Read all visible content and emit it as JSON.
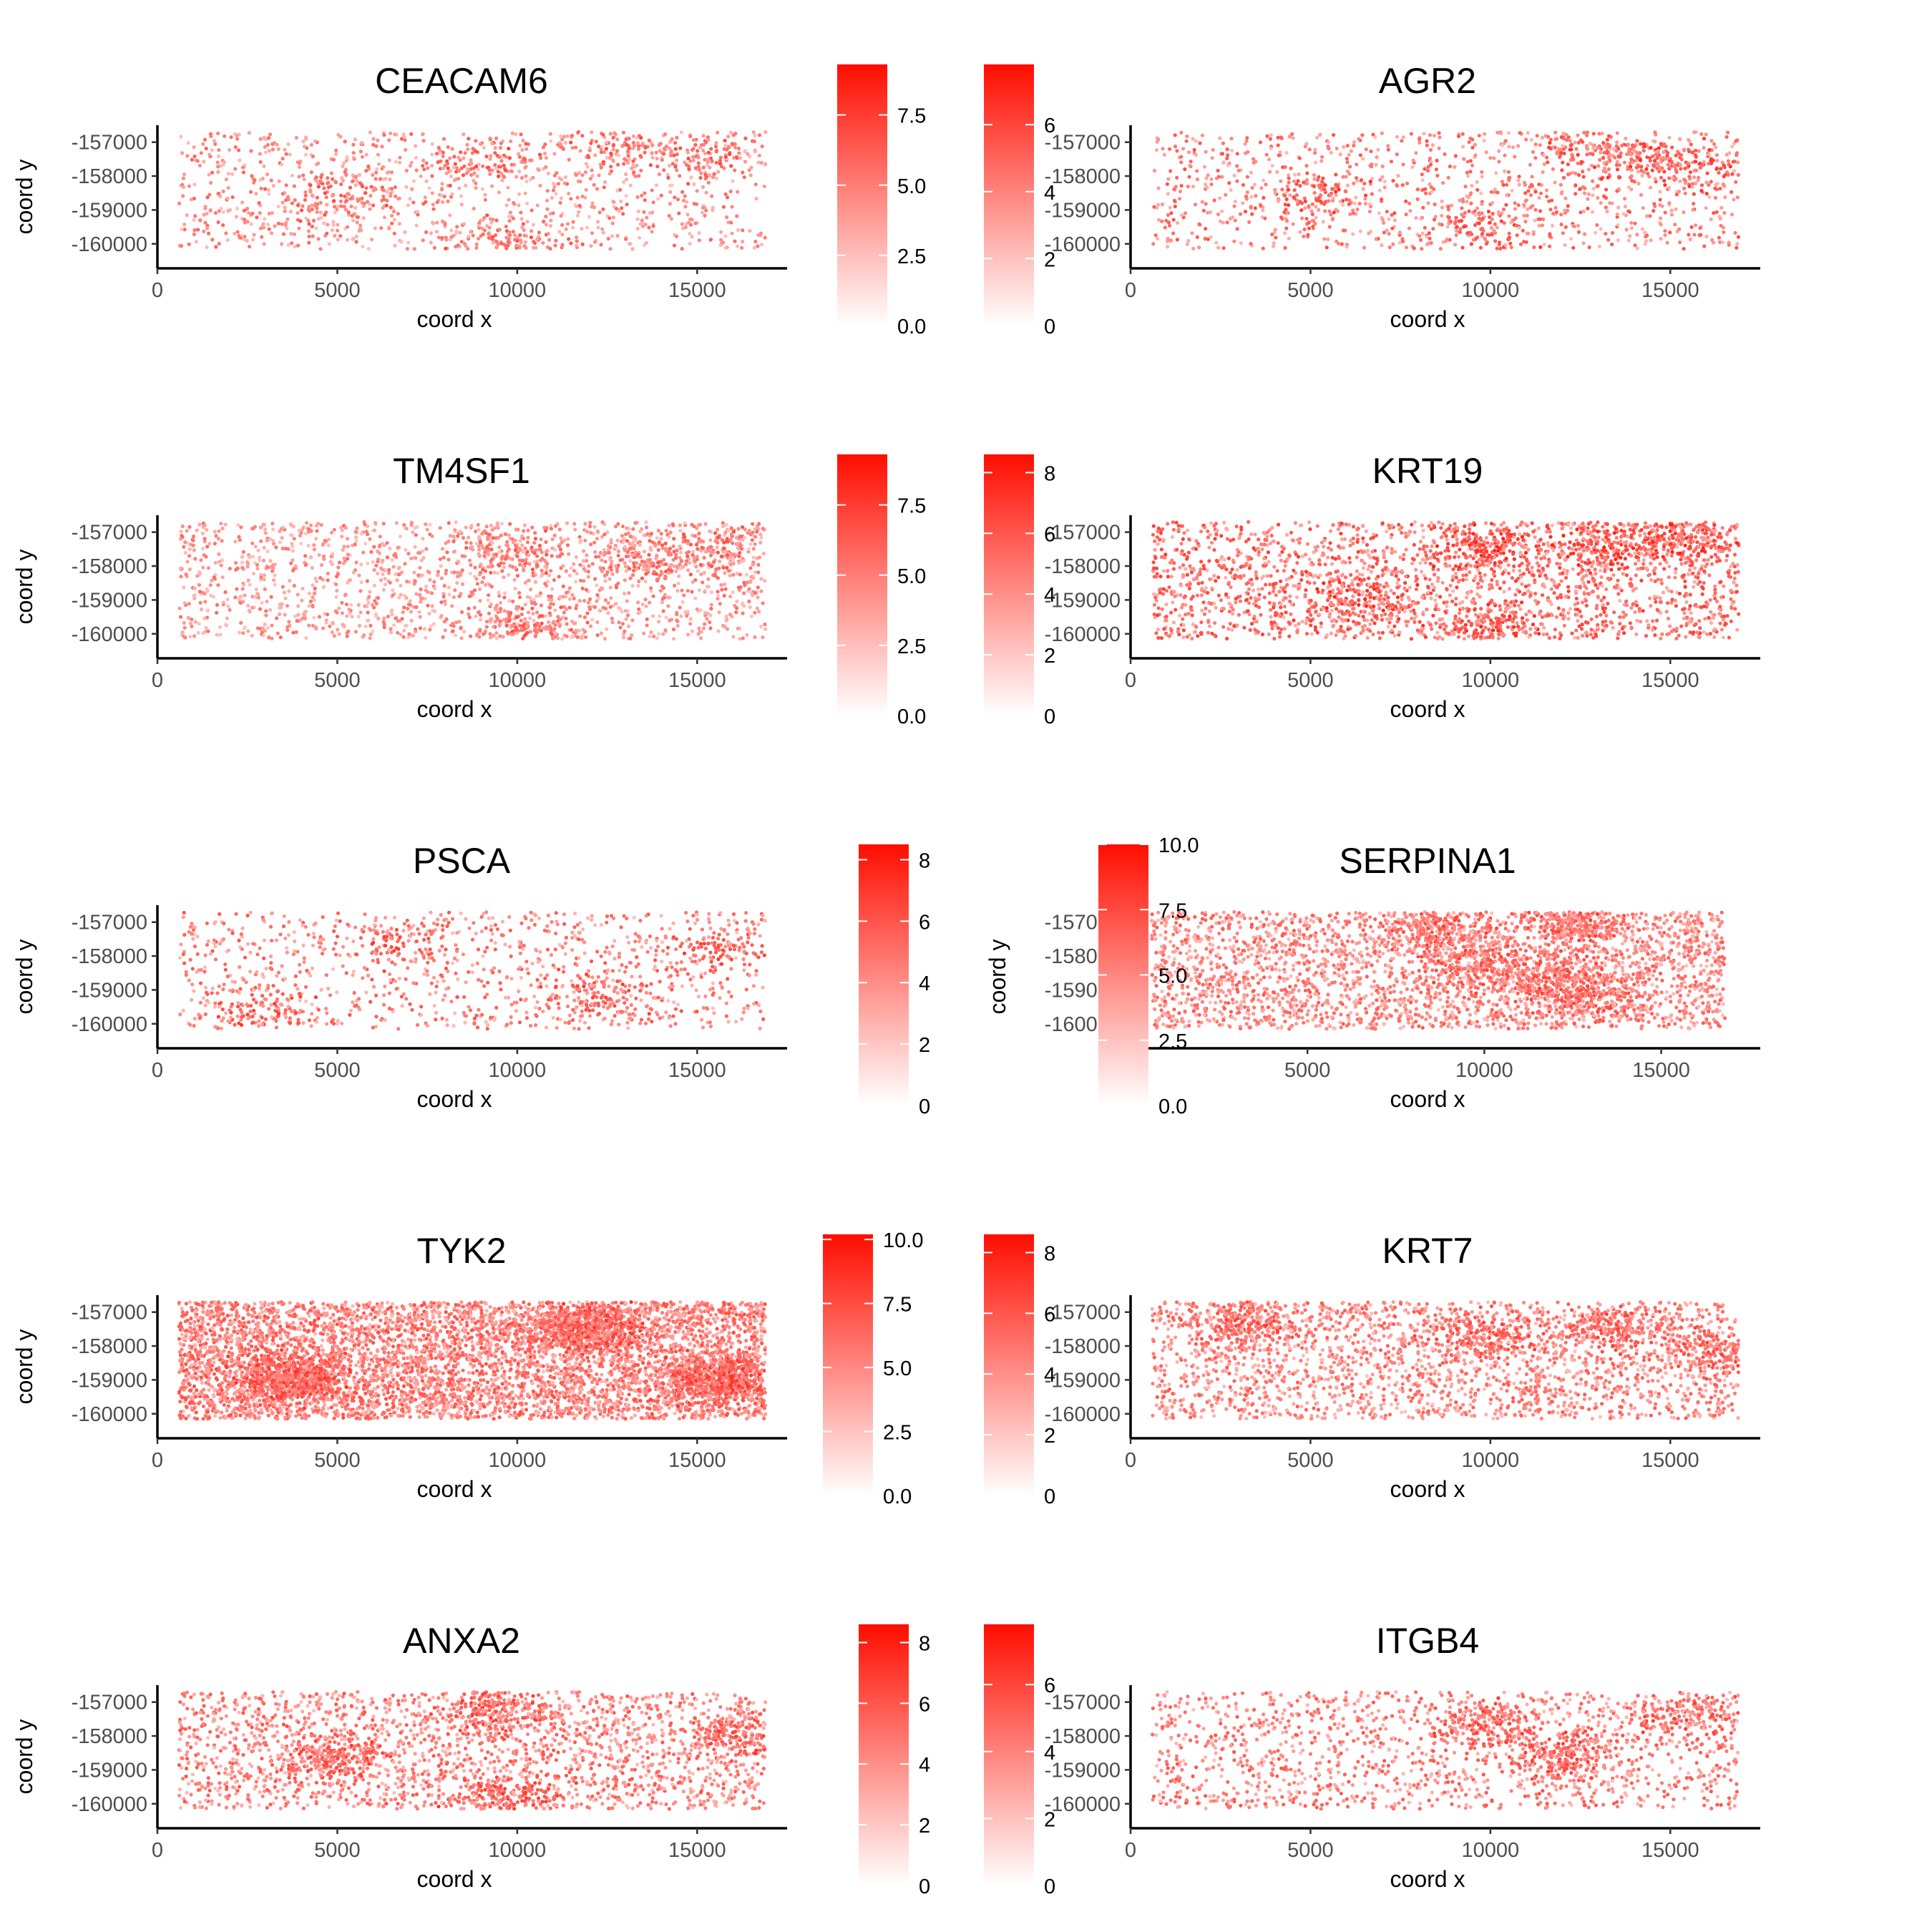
{
  "chart_data": [
    {
      "type": "scatter",
      "title": "CEACAM6",
      "xlabel": "coord x",
      "ylabel": "coord y",
      "xlim": [
        0,
        17500
      ],
      "ylim": [
        -160300,
        -156500
      ],
      "x_ticks": [
        0,
        5000,
        10000,
        15000
      ],
      "x_tick_labels": [
        "0",
        "5000",
        "10000",
        "15000"
      ],
      "y_ticks": [
        -160000,
        -159000,
        -158000,
        -157000
      ],
      "y_tick_labels": [
        "-160000",
        "-159000",
        "-158000",
        "-157000"
      ],
      "colorbar": {
        "range": [
          0,
          9.3
        ],
        "ticks": [
          0,
          2.5,
          5,
          7.5
        ],
        "tick_labels": [
          "0.0",
          "2.5",
          "5.0",
          "7.5"
        ],
        "low_color": "#ffffff",
        "high_color": "#ff0d00"
      },
      "density": 1.0,
      "intensity": 0.55,
      "hotspots": [
        [
          15200,
          -157400
        ],
        [
          12600,
          -157200
        ],
        [
          10000,
          -160000
        ],
        [
          9200,
          -157600
        ],
        [
          5000,
          -158600
        ]
      ],
      "grid": false,
      "legend": "right"
    },
    {
      "type": "scatter",
      "title": "AGR2",
      "xlabel": "coord x",
      "ylabel": "coord y",
      "xlim": [
        0,
        17500
      ],
      "ylim": [
        -160300,
        -156500
      ],
      "x_ticks": [
        0,
        5000,
        10000,
        15000
      ],
      "x_tick_labels": [
        "0",
        "5000",
        "10000",
        "15000"
      ],
      "y_ticks": [
        -160000,
        -159000,
        -158000,
        -157000
      ],
      "y_tick_labels": [
        "-160000",
        "-159000",
        "-158000",
        "-157000"
      ],
      "colorbar": {
        "range": [
          0,
          7.8
        ],
        "ticks": [
          0,
          2,
          4,
          6
        ],
        "tick_labels": [
          "0",
          "2",
          "4",
          "6"
        ],
        "low_color": "#ffffff",
        "high_color": "#ff0d00"
      },
      "density": 1.0,
      "intensity": 0.62,
      "hotspots": [
        [
          14500,
          -157500
        ],
        [
          16000,
          -157800
        ],
        [
          12800,
          -157300
        ],
        [
          9800,
          -159500
        ],
        [
          5200,
          -158600
        ]
      ],
      "grid": false,
      "legend": "right"
    },
    {
      "type": "scatter",
      "title": "TM4SF1",
      "xlabel": "coord x",
      "ylabel": "coord y",
      "xlim": [
        0,
        17500
      ],
      "ylim": [
        -160300,
        -156500
      ],
      "x_ticks": [
        0,
        5000,
        10000,
        15000
      ],
      "x_tick_labels": [
        "0",
        "5000",
        "10000",
        "15000"
      ],
      "y_ticks": [
        -160000,
        -159000,
        -158000,
        -157000
      ],
      "y_tick_labels": [
        "-160000",
        "-159000",
        "-158000",
        "-157000"
      ],
      "colorbar": {
        "range": [
          0,
          9.3
        ],
        "ticks": [
          0,
          2.5,
          5,
          7.5
        ],
        "tick_labels": [
          "0.0",
          "2.5",
          "5.0",
          "7.5"
        ],
        "low_color": "#ffffff",
        "high_color": "#ff0d00"
      },
      "density": 1.4,
      "intensity": 0.52,
      "hotspots": [
        [
          9800,
          -157600
        ],
        [
          10200,
          -159800
        ],
        [
          13500,
          -157800
        ],
        [
          15500,
          -157500
        ]
      ],
      "grid": false,
      "legend": "right"
    },
    {
      "type": "scatter",
      "title": "KRT19",
      "xlabel": "coord x",
      "ylabel": "coord y",
      "xlim": [
        0,
        17500
      ],
      "ylim": [
        -160300,
        -156500
      ],
      "x_ticks": [
        0,
        5000,
        10000,
        15000
      ],
      "x_tick_labels": [
        "0",
        "5000",
        "10000",
        "15000"
      ],
      "y_ticks": [
        -160000,
        -159000,
        -158000,
        -157000
      ],
      "y_tick_labels": [
        "-160000",
        "-159000",
        "-158000",
        "-157000"
      ],
      "colorbar": {
        "range": [
          0,
          8.6
        ],
        "ticks": [
          0,
          2,
          4,
          6,
          8
        ],
        "tick_labels": [
          "0",
          "2",
          "4",
          "6",
          "8"
        ],
        "low_color": "#ffffff",
        "high_color": "#ff0d00"
      },
      "density": 1.9,
      "intensity": 0.68,
      "hotspots": [
        [
          9800,
          -157500
        ],
        [
          10000,
          -159800
        ],
        [
          13200,
          -157300
        ],
        [
          15500,
          -157200
        ],
        [
          6500,
          -159000
        ]
      ],
      "grid": false,
      "legend": "right"
    },
    {
      "type": "scatter",
      "title": "PSCA",
      "xlabel": "coord x",
      "ylabel": "coord y",
      "xlim": [
        0,
        17500
      ],
      "ylim": [
        -160300,
        -156500
      ],
      "x_ticks": [
        0,
        5000,
        10000,
        15000
      ],
      "x_tick_labels": [
        "0",
        "5000",
        "10000",
        "15000"
      ],
      "y_ticks": [
        -160000,
        -159000,
        -158000,
        -157000
      ],
      "y_tick_labels": [
        "-160000",
        "-159000",
        "-158000",
        "-157000"
      ],
      "colorbar": {
        "range": [
          0,
          8.5
        ],
        "ticks": [
          0,
          2,
          4,
          6,
          8
        ],
        "tick_labels": [
          "0",
          "2",
          "4",
          "6",
          "8"
        ],
        "low_color": "#ffffff",
        "high_color": "#ff0d00"
      },
      "density": 0.9,
      "intensity": 0.6,
      "hotspots": [
        [
          6700,
          -157500
        ],
        [
          2800,
          -159700
        ],
        [
          12300,
          -159200
        ],
        [
          15800,
          -157800
        ]
      ],
      "grid": false,
      "legend": "right"
    },
    {
      "type": "scatter",
      "title": "SERPINA1",
      "xlabel": "coord x",
      "ylabel": "coord y",
      "xlim": [
        0,
        17800
      ],
      "ylim": [
        -160300,
        -156500
      ],
      "x_ticks": [
        0,
        5000,
        10000,
        15000
      ],
      "x_tick_labels": [
        "0",
        "5000",
        "10000",
        "15000"
      ],
      "y_ticks": [
        -160000,
        -159000,
        -158000,
        -157000
      ],
      "y_tick_labels": [
        "-160000",
        "-159000",
        "-158000",
        "-157000"
      ],
      "colorbar": {
        "range": [
          0,
          10
        ],
        "ticks": [
          0,
          2.5,
          5,
          7.5,
          10
        ],
        "tick_labels": [
          "0.0",
          "2.5",
          "5.0",
          "7.5",
          "10.0"
        ],
        "low_color": "#ffffff",
        "high_color": "#ff0d00"
      },
      "density": 2.6,
      "intensity": 0.58,
      "hotspots": [
        [
          9800,
          -158200
        ],
        [
          11800,
          -158700
        ],
        [
          13000,
          -159200
        ],
        [
          8500,
          -157200
        ],
        [
          12500,
          -157100
        ]
      ],
      "grid": false,
      "legend": "right"
    },
    {
      "type": "scatter",
      "title": "TYK2",
      "xlabel": "coord x",
      "ylabel": "coord y",
      "xlim": [
        0,
        17500
      ],
      "ylim": [
        -160300,
        -156500
      ],
      "x_ticks": [
        0,
        5000,
        10000,
        15000
      ],
      "x_tick_labels": [
        "0",
        "5000",
        "10000",
        "15000"
      ],
      "y_ticks": [
        -160000,
        -159000,
        -158000,
        -157000
      ],
      "y_tick_labels": [
        "-160000",
        "-159000",
        "-158000",
        "-157000"
      ],
      "colorbar": {
        "range": [
          0,
          10.2
        ],
        "ticks": [
          0,
          2.5,
          5,
          7.5,
          10
        ],
        "tick_labels": [
          "0.0",
          "2.5",
          "5.0",
          "7.5",
          "10.0"
        ],
        "low_color": "#ffffff",
        "high_color": "#ff0d00"
      },
      "density": 4.8,
      "intensity": 0.62,
      "hotspots": [
        [
          3800,
          -159000
        ],
        [
          15500,
          -159000
        ],
        [
          12000,
          -157500
        ]
      ],
      "grid": false,
      "legend": "right"
    },
    {
      "type": "scatter",
      "title": "KRT7",
      "xlabel": "coord x",
      "ylabel": "coord y",
      "xlim": [
        0,
        17500
      ],
      "ylim": [
        -160300,
        -156500
      ],
      "x_ticks": [
        0,
        5000,
        10000,
        15000
      ],
      "x_tick_labels": [
        "0",
        "5000",
        "10000",
        "15000"
      ],
      "y_ticks": [
        -160000,
        -159000,
        -158000,
        -157000
      ],
      "y_tick_labels": [
        "-160000",
        "-159000",
        "-158000",
        "-157000"
      ],
      "colorbar": {
        "range": [
          0,
          8.6
        ],
        "ticks": [
          0,
          2,
          4,
          6,
          8
        ],
        "tick_labels": [
          "0",
          "2",
          "4",
          "6",
          "8"
        ],
        "low_color": "#ffffff",
        "high_color": "#ff0d00"
      },
      "density": 2.0,
      "intensity": 0.58,
      "hotspots": [
        [
          9800,
          -157700
        ],
        [
          3200,
          -157300
        ],
        [
          13500,
          -157500
        ],
        [
          16500,
          -158200
        ]
      ],
      "grid": false,
      "legend": "right"
    },
    {
      "type": "scatter",
      "title": "ANXA2",
      "xlabel": "coord x",
      "ylabel": "coord y",
      "xlim": [
        0,
        17500
      ],
      "ylim": [
        -160300,
        -156500
      ],
      "x_ticks": [
        0,
        5000,
        10000,
        15000
      ],
      "x_tick_labels": [
        "0",
        "5000",
        "10000",
        "15000"
      ],
      "y_ticks": [
        -160000,
        -159000,
        -158000,
        -157000
      ],
      "y_tick_labels": [
        "-160000",
        "-159000",
        "-158000",
        "-157000"
      ],
      "colorbar": {
        "range": [
          0,
          8.6
        ],
        "ticks": [
          0,
          2,
          4,
          6,
          8
        ],
        "tick_labels": [
          "0",
          "2",
          "4",
          "6",
          "8"
        ],
        "low_color": "#ffffff",
        "high_color": "#ff0d00"
      },
      "density": 1.9,
      "intensity": 0.6,
      "hotspots": [
        [
          9800,
          -159900
        ],
        [
          9500,
          -157300
        ],
        [
          16200,
          -158000
        ],
        [
          5000,
          -158600
        ]
      ],
      "grid": false,
      "legend": "right"
    },
    {
      "type": "scatter",
      "title": "ITGB4",
      "xlabel": "coord x",
      "ylabel": "coord y",
      "xlim": [
        0,
        17500
      ],
      "ylim": [
        -160300,
        -156500
      ],
      "x_ticks": [
        0,
        5000,
        10000,
        15000
      ],
      "x_tick_labels": [
        "0",
        "5000",
        "10000",
        "15000"
      ],
      "y_ticks": [
        -160000,
        -159000,
        -158000,
        -157000
      ],
      "y_tick_labels": [
        "-160000",
        "-159000",
        "-158000",
        "-157000"
      ],
      "colorbar": {
        "range": [
          0,
          7.8
        ],
        "ticks": [
          0,
          2,
          4,
          6
        ],
        "tick_labels": [
          "0",
          "2",
          "4",
          "6"
        ],
        "low_color": "#ffffff",
        "high_color": "#ff0d00"
      },
      "density": 1.3,
      "intensity": 0.6,
      "hotspots": [
        [
          9800,
          -157600
        ],
        [
          12000,
          -158600
        ],
        [
          15500,
          -157500
        ]
      ],
      "grid": false,
      "legend": "right"
    }
  ]
}
